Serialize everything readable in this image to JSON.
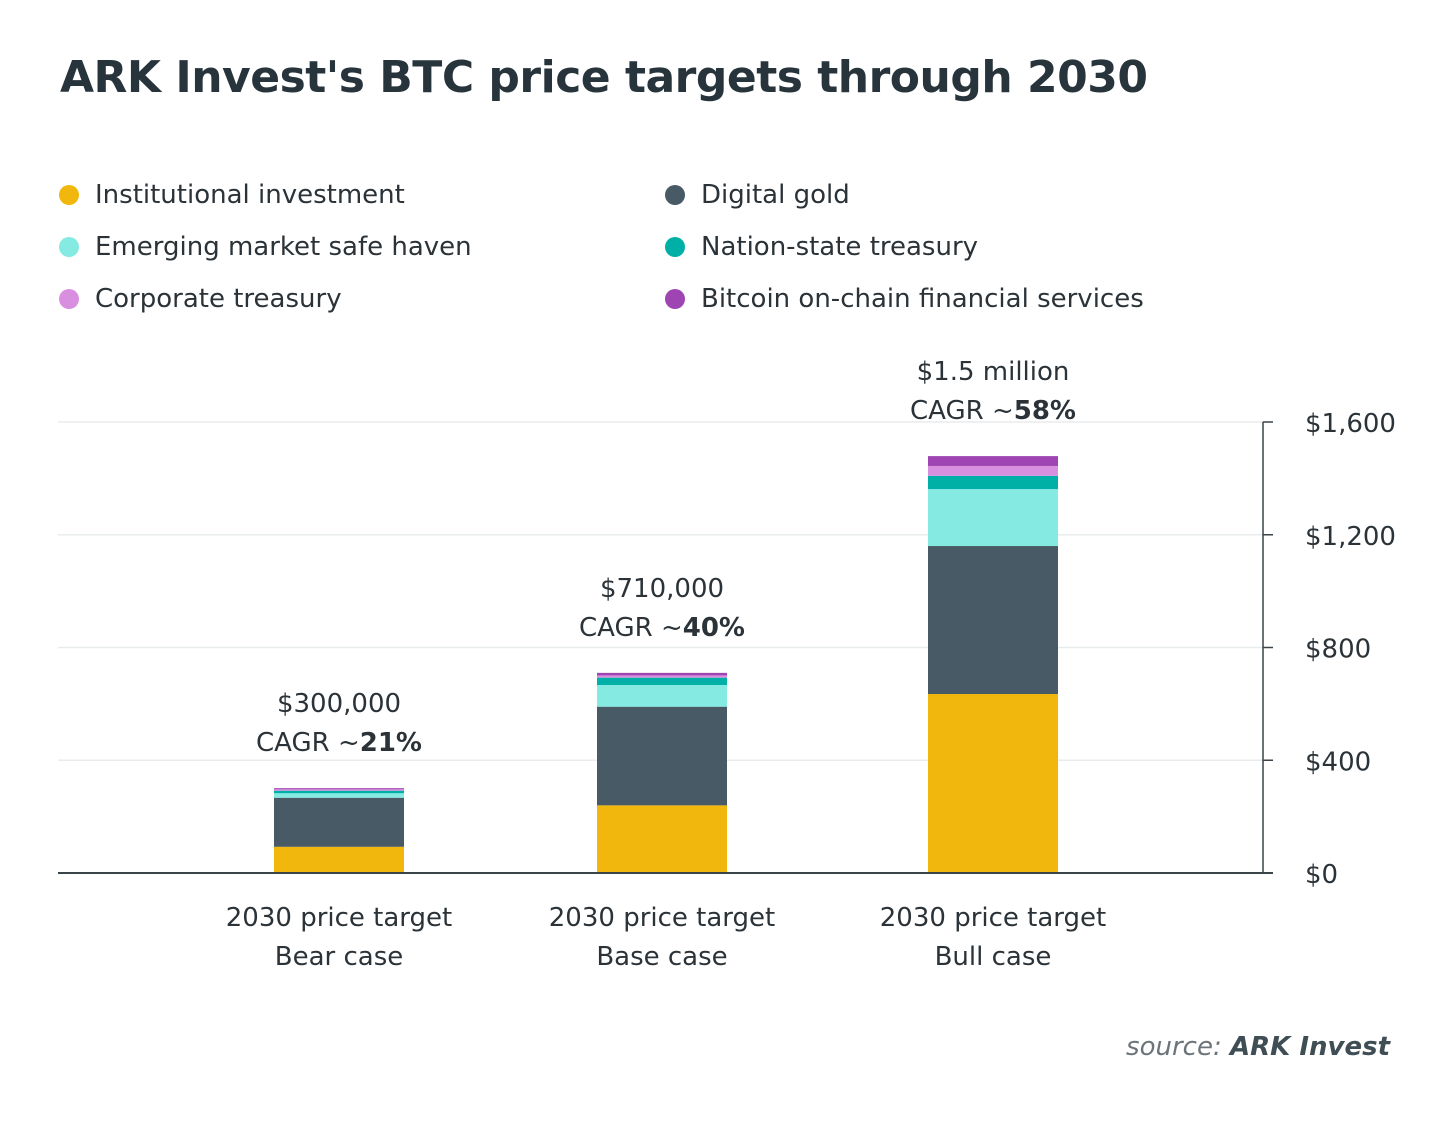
{
  "title": "ARK Invest's BTC price targets through 2030",
  "source": {
    "prefix": "source:",
    "name": "ARK Invest"
  },
  "colors": {
    "Institutional investment": "#F2B70D",
    "Digital gold": "#475A65",
    "Emerging market safe haven": "#84EAE2",
    "Nation-state treasury": "#00B0A6",
    "Corporate treasury": "#D88FE0",
    "Bitcoin on-chain financial services": "#9E45B3"
  },
  "legend": [
    {
      "label": "Institutional investment",
      "color": "#F2B70D"
    },
    {
      "label": "Digital gold",
      "color": "#475A65"
    },
    {
      "label": "Emerging market safe haven",
      "color": "#84EAE2"
    },
    {
      "label": "Nation-state treasury",
      "color": "#00B0A6"
    },
    {
      "label": "Corporate treasury",
      "color": "#D88FE0"
    },
    {
      "label": "Bitcoin on-chain financial services",
      "color": "#9E45B3"
    }
  ],
  "chart_data": {
    "type": "bar",
    "stacked": true,
    "title": "ARK Invest's BTC price targets through 2030",
    "xlabel": "",
    "ylabel": "",
    "ylim": [
      0,
      1600
    ],
    "yticks": [
      "$0",
      "$400",
      "$800",
      "$1,200",
      "$1,600"
    ],
    "ytick_values": [
      0,
      400,
      800,
      1200,
      1600
    ],
    "y_axis_side": "right",
    "grid": true,
    "legend_position": "top",
    "categories": [
      [
        "2030 price target",
        "Bear case"
      ],
      [
        "2030 price target",
        "Base case"
      ],
      [
        "2030 price target",
        "Bull case"
      ]
    ],
    "annotations": [
      {
        "price": "$300,000",
        "cagr_prefix": "CAGR ~",
        "cagr": "21%"
      },
      {
        "price": "$710,000",
        "cagr_prefix": "CAGR ~",
        "cagr": "40%"
      },
      {
        "price": "$1.5 million",
        "cagr_prefix": "CAGR ~",
        "cagr": "58%"
      }
    ],
    "series": [
      {
        "name": "Institutional investment",
        "values": [
          93,
          240,
          635
        ]
      },
      {
        "name": "Digital gold",
        "values": [
          174,
          350,
          525
        ]
      },
      {
        "name": "Emerging market safe haven",
        "values": [
          16,
          77,
          202
        ]
      },
      {
        "name": "Nation-state treasury",
        "values": [
          9,
          26,
          47
        ]
      },
      {
        "name": "Corporate treasury",
        "values": [
          5,
          8,
          35
        ]
      },
      {
        "name": "Bitcoin on-chain financial services",
        "values": [
          4,
          9,
          35
        ]
      }
    ]
  }
}
